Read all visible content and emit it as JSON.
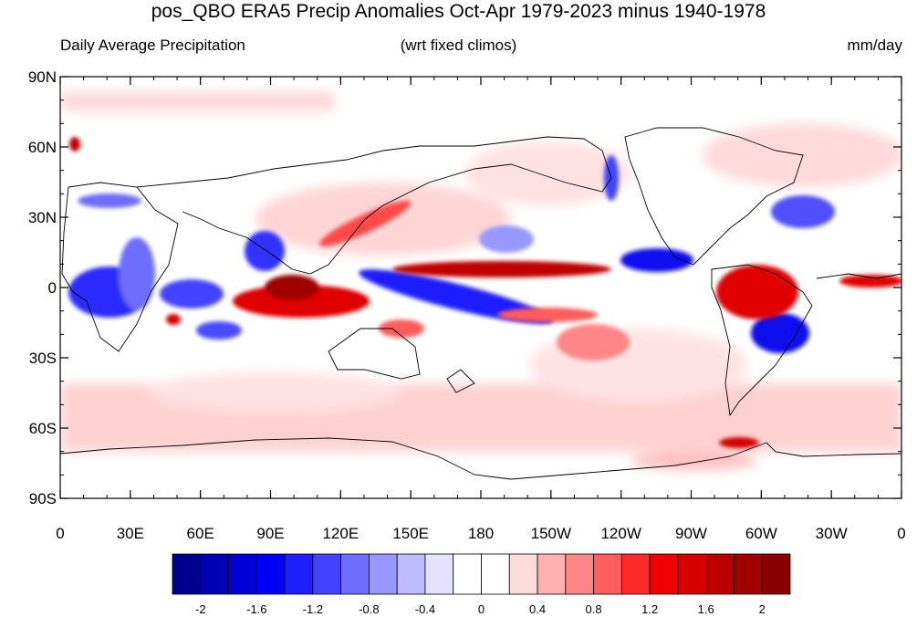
{
  "title": "pos_QBO ERA5 Precip Anomalies Oct-Apr 1979-2023 minus 1940-1978",
  "subtitle_left": "Daily Average Precipitation",
  "subtitle_center": "(wrt fixed climos)",
  "subtitle_right": "mm/day",
  "lat_labels": [
    "90N",
    "60N",
    "30N",
    "0",
    "30S",
    "60S",
    "90S"
  ],
  "lon_labels": [
    "0",
    "30E",
    "60E",
    "90E",
    "120E",
    "150E",
    "180",
    "150W",
    "120W",
    "90W",
    "60W",
    "30W",
    "0"
  ],
  "colorbar": {
    "colors": [
      "#00008f",
      "#0000b4",
      "#0000d6",
      "#0000f5",
      "#1e1eff",
      "#4343ff",
      "#6d6dff",
      "#9797ff",
      "#bcbcff",
      "#e3e3ff",
      "#ffffff",
      "#ffffff",
      "#ffdcdc",
      "#ffb0b0",
      "#ff8686",
      "#ff5c5c",
      "#ff2a2a",
      "#f00000",
      "#d60000",
      "#bc0000",
      "#a00000",
      "#880000"
    ],
    "labels": [
      "-2",
      "-1.6",
      "-1.2",
      "-0.8",
      "-0.4",
      "0",
      "0.4",
      "0.8",
      "1.2",
      "1.6",
      "2"
    ]
  },
  "map_features": {
    "coastline_color": "#000000",
    "positive_color": "#e60000",
    "negative_color": "#0000d6"
  }
}
